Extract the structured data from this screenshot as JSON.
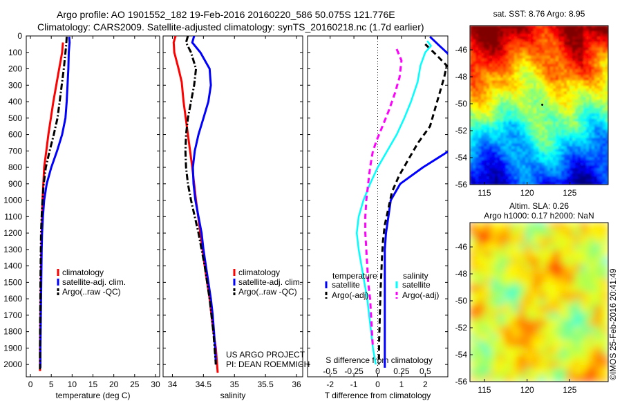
{
  "header": {
    "title_line1": "Argo profile: AO 1901552_182 19-Feb-2016 20160220_586 50.075S 121.776E",
    "title_line2": "Climatology: CARS2009. Satellite-adjusted climatology: synTS_20160218.nc (1.7d earlier)"
  },
  "colors": {
    "climatology": "#ff0000",
    "satellite": "#0000ff",
    "argo": "#000000",
    "sat_diff": "#00ffff",
    "argo_s_diff": "#ff00ff"
  },
  "chart_data": [
    {
      "type": "line",
      "panel": "temperature",
      "xlabel": "temperature (deg C)",
      "xlim": [
        -1,
        31
      ],
      "xticks": [
        0,
        5,
        10,
        15,
        20,
        25,
        30
      ],
      "ylim": [
        0,
        2075
      ],
      "yticks": [
        0,
        100,
        200,
        300,
        400,
        500,
        600,
        700,
        800,
        900,
        1000,
        1100,
        1200,
        1300,
        1400,
        1500,
        1600,
        1700,
        1800,
        1900,
        2000
      ],
      "y_reversed": true,
      "legend": {
        "position": "lower-left",
        "entries": [
          "climatology",
          "satellite-adj. clim.",
          "Argo(..raw -QC)"
        ]
      },
      "series": [
        {
          "name": "climatology",
          "style": "solid",
          "color": "#ff0000",
          "points": [
            [
              7.8,
              40
            ],
            [
              7.6,
              100
            ],
            [
              6.9,
              200
            ],
            [
              6.2,
              300
            ],
            [
              5.5,
              400
            ],
            [
              4.9,
              500
            ],
            [
              4.3,
              600
            ],
            [
              3.8,
              700
            ],
            [
              3.3,
              800
            ],
            [
              3.1,
              900
            ],
            [
              2.9,
              1000
            ],
            [
              2.8,
              1100
            ],
            [
              2.7,
              1200
            ],
            [
              2.6,
              1300
            ],
            [
              2.55,
              1400
            ],
            [
              2.5,
              1500
            ],
            [
              2.45,
              1600
            ],
            [
              2.4,
              1700
            ],
            [
              2.35,
              1800
            ],
            [
              2.3,
              1900
            ],
            [
              2.3,
              2040
            ]
          ]
        },
        {
          "name": "satellite-adj. clim.",
          "style": "solid",
          "color": "#0000ff",
          "points": [
            [
              9.3,
              5
            ],
            [
              9.4,
              40
            ],
            [
              9.2,
              100
            ],
            [
              9.1,
              200
            ],
            [
              8.9,
              300
            ],
            [
              8.7,
              400
            ],
            [
              8.4,
              500
            ],
            [
              7.6,
              600
            ],
            [
              6.4,
              700
            ],
            [
              5.0,
              800
            ],
            [
              3.9,
              900
            ],
            [
              3.3,
              1000
            ],
            [
              3.0,
              1100
            ],
            [
              2.8,
              1200
            ],
            [
              2.7,
              1300
            ],
            [
              2.65,
              1400
            ],
            [
              2.6,
              1500
            ],
            [
              2.55,
              1600
            ],
            [
              2.5,
              1700
            ],
            [
              2.45,
              1800
            ],
            [
              2.4,
              1900
            ],
            [
              2.4,
              2020
            ]
          ]
        },
        {
          "name": "Argo(..raw -QC)",
          "style": "dashdot",
          "color": "#000000",
          "points": [
            [
              8.7,
              5
            ],
            [
              8.6,
              50
            ],
            [
              8.4,
              100
            ],
            [
              8.0,
              200
            ],
            [
              7.5,
              300
            ],
            [
              7.0,
              400
            ],
            [
              6.5,
              500
            ],
            [
              5.6,
              600
            ],
            [
              4.6,
              700
            ],
            [
              3.7,
              800
            ],
            [
              3.2,
              900
            ],
            [
              2.9,
              1000
            ],
            [
              2.7,
              1100
            ],
            [
              2.55,
              1200
            ],
            [
              2.5,
              1300
            ],
            [
              2.45,
              1400
            ],
            [
              2.4,
              1500
            ],
            [
              2.38,
              1600
            ],
            [
              2.35,
              1700
            ],
            [
              2.32,
              1800
            ],
            [
              2.3,
              1900
            ],
            [
              2.3,
              2030
            ]
          ]
        }
      ]
    },
    {
      "type": "line",
      "panel": "salinity",
      "xlabel": "salinity",
      "xlim": [
        33.85,
        36.1
      ],
      "xticks": [
        34,
        34.5,
        35,
        35.5,
        36
      ],
      "xticklabels": [
        "34",
        "34.5",
        "35",
        "35.5",
        "36"
      ],
      "ylim": [
        0,
        2075
      ],
      "y_reversed": true,
      "legend": {
        "position": "lower-right",
        "entries": [
          "climatology",
          "satellite-adj. clim.",
          "Argo(..raw -QC)"
        ]
      },
      "annotation": [
        "US ARGO PROJECT",
        "PI: DEAN ROEMMICH"
      ],
      "series": [
        {
          "name": "climatology",
          "style": "solid",
          "color": "#ff0000",
          "points": [
            [
              34.05,
              0
            ],
            [
              34.02,
              40
            ],
            [
              34.03,
              100
            ],
            [
              34.1,
              200
            ],
            [
              34.15,
              280
            ],
            [
              34.18,
              400
            ],
            [
              34.25,
              600
            ],
            [
              34.32,
              800
            ],
            [
              34.38,
              1000
            ],
            [
              34.45,
              1200
            ],
            [
              34.52,
              1400
            ],
            [
              34.6,
              1600
            ],
            [
              34.66,
              1800
            ],
            [
              34.7,
              1900
            ],
            [
              34.73,
              2050
            ]
          ]
        },
        {
          "name": "satellite-adj. clim.",
          "style": "solid",
          "color": "#0000ff",
          "points": [
            [
              34.35,
              0
            ],
            [
              34.32,
              40
            ],
            [
              34.45,
              100
            ],
            [
              34.6,
              200
            ],
            [
              34.62,
              300
            ],
            [
              34.58,
              400
            ],
            [
              34.5,
              500
            ],
            [
              34.42,
              600
            ],
            [
              34.36,
              700
            ],
            [
              34.33,
              800
            ],
            [
              34.34,
              900
            ],
            [
              34.37,
              1000
            ],
            [
              34.42,
              1100
            ],
            [
              34.47,
              1200
            ],
            [
              34.5,
              1300
            ],
            [
              34.54,
              1400
            ],
            [
              34.58,
              1500
            ],
            [
              34.62,
              1600
            ],
            [
              34.65,
              1700
            ],
            [
              34.67,
              1800
            ],
            [
              34.69,
              1900
            ],
            [
              34.7,
              2000
            ]
          ]
        },
        {
          "name": "Argo(..raw -QC)",
          "style": "dashdot",
          "color": "#000000",
          "points": [
            [
              34.25,
              0
            ],
            [
              34.22,
              40
            ],
            [
              34.3,
              100
            ],
            [
              34.38,
              200
            ],
            [
              34.35,
              300
            ],
            [
              34.3,
              400
            ],
            [
              34.25,
              500
            ],
            [
              34.22,
              600
            ],
            [
              34.21,
              700
            ],
            [
              34.22,
              800
            ],
            [
              34.25,
              900
            ],
            [
              34.3,
              1000
            ],
            [
              34.36,
              1100
            ],
            [
              34.42,
              1200
            ],
            [
              34.47,
              1300
            ],
            [
              34.52,
              1400
            ],
            [
              34.56,
              1500
            ],
            [
              34.6,
              1600
            ],
            [
              34.63,
              1700
            ],
            [
              34.66,
              1800
            ],
            [
              34.68,
              1900
            ],
            [
              34.7,
              2000
            ]
          ]
        }
      ]
    },
    {
      "type": "line",
      "panel": "difference",
      "xlabel": "T difference from climatology",
      "xlabel_top": "S difference from climatology",
      "xlim": [
        -2.95,
        2.95
      ],
      "xticks": [
        -2,
        -1,
        0,
        1,
        2
      ],
      "sticks": [
        -0.5,
        -0.25,
        0,
        0.25,
        0.5
      ],
      "sticklabels": [
        "-0.5",
        "-0.25",
        "0",
        "0.25",
        "0.5"
      ],
      "ylim": [
        0,
        2075
      ],
      "y_reversed": true,
      "zero_line": "dotted",
      "legend": {
        "position": "lower",
        "temperature_header": "temperature",
        "salinity_header": "salinity",
        "entries": [
          "satellite",
          "Argo(-adj)",
          "satellite",
          "Argo(-adj)"
        ]
      },
      "series": [
        {
          "name": "satellite",
          "group": "temperature",
          "style": "solid",
          "color": "#0000ff",
          "points": [
            [
              2.2,
              5
            ],
            [
              2.6,
              60
            ],
            [
              2.9,
              100
            ],
            [
              3.5,
              200
            ],
            [
              3.5,
              400
            ],
            [
              3.3,
              600
            ],
            [
              3.0,
              700
            ],
            [
              1.9,
              800
            ],
            [
              0.95,
              900
            ],
            [
              0.55,
              1000
            ],
            [
              0.45,
              1100
            ],
            [
              0.35,
              1200
            ],
            [
              0.3,
              1300
            ],
            [
              0.3,
              1400
            ],
            [
              0.3,
              1500
            ],
            [
              0.3,
              1600
            ],
            [
              0.3,
              1700
            ],
            [
              0.3,
              1800
            ],
            [
              0.3,
              1900
            ],
            [
              0.3,
              2020
            ]
          ]
        },
        {
          "name": "Argo(-adj)",
          "group": "temperature",
          "style": "dashed",
          "color": "#000000",
          "points": [
            [
              2.0,
              50
            ],
            [
              2.5,
              120
            ],
            [
              2.9,
              180
            ],
            [
              2.8,
              250
            ],
            [
              2.7,
              300
            ],
            [
              2.5,
              400
            ],
            [
              2.2,
              550
            ],
            [
              1.7,
              650
            ],
            [
              1.3,
              750
            ],
            [
              0.9,
              850
            ],
            [
              0.6,
              950
            ],
            [
              0.45,
              1050
            ],
            [
              0.3,
              1150
            ],
            [
              0.22,
              1250
            ],
            [
              0.18,
              1350
            ],
            [
              0.15,
              1450
            ],
            [
              0.12,
              1550
            ],
            [
              0.1,
              1650
            ],
            [
              0.08,
              1750
            ],
            [
              0.06,
              1850
            ],
            [
              0.05,
              2000
            ]
          ]
        },
        {
          "name": "satellite",
          "group": "salinity",
          "style": "solid",
          "color": "#00ffff",
          "points": [
            [
              0.52,
              30
            ],
            [
              0.56,
              60
            ],
            [
              0.5,
              100
            ],
            [
              0.45,
              180
            ],
            [
              0.42,
              280
            ],
            [
              0.35,
              400
            ],
            [
              0.28,
              500
            ],
            [
              0.2,
              600
            ],
            [
              0.1,
              700
            ],
            [
              0.0,
              800
            ],
            [
              -0.08,
              900
            ],
            [
              -0.15,
              1000
            ],
            [
              -0.2,
              1100
            ],
            [
              -0.22,
              1200
            ],
            [
              -0.2,
              1300
            ],
            [
              -0.17,
              1400
            ],
            [
              -0.14,
              1500
            ],
            [
              -0.11,
              1600
            ],
            [
              -0.09,
              1700
            ],
            [
              -0.07,
              1800
            ],
            [
              -0.05,
              1900
            ],
            [
              -0.02,
              2000
            ]
          ]
        },
        {
          "name": "Argo(-adj)",
          "group": "salinity",
          "style": "dashed",
          "color": "#ff00ff",
          "points": [
            [
              0.2,
              80
            ],
            [
              0.25,
              150
            ],
            [
              0.23,
              250
            ],
            [
              0.18,
              350
            ],
            [
              0.12,
              450
            ],
            [
              0.05,
              550
            ],
            [
              0.0,
              620
            ],
            [
              -0.05,
              700
            ],
            [
              -0.08,
              800
            ],
            [
              -0.1,
              900
            ],
            [
              -0.12,
              1000
            ],
            [
              -0.13,
              1100
            ],
            [
              -0.13,
              1200
            ],
            [
              -0.12,
              1300
            ],
            [
              -0.11,
              1400
            ],
            [
              -0.1,
              1500
            ],
            [
              -0.08,
              1600
            ],
            [
              -0.07,
              1700
            ],
            [
              -0.06,
              1800
            ],
            [
              -0.05,
              1900
            ]
          ]
        }
      ]
    },
    {
      "type": "heatmap",
      "panel": "sst_map",
      "title": "sat. SST: 8.76 Argo: 8.95",
      "xlim": [
        113.3,
        129.5
      ],
      "ylim": [
        -56,
        -44.2
      ],
      "xticks": [
        115,
        120,
        125
      ],
      "yticks": [
        -46,
        -48,
        -50,
        -52,
        -54,
        -56
      ],
      "profile_position": [
        121.776,
        -50.075
      ]
    },
    {
      "type": "heatmap",
      "panel": "sla_map",
      "title_line1": "Altim. SLA: 0.26",
      "title_line2": "Argo h1000: 0.17 h2000: NaN",
      "xlim": [
        113.3,
        129.5
      ],
      "ylim": [
        -56,
        -44.2
      ],
      "xticks": [
        115,
        120,
        125
      ],
      "yticks": [
        -46,
        -48,
        -50,
        -52,
        -54,
        -56
      ],
      "profile_position": [
        121.776,
        -50.075
      ]
    }
  ],
  "footer": {
    "stamp": "©IMOS 25-Feb-2016 20:41:49"
  }
}
